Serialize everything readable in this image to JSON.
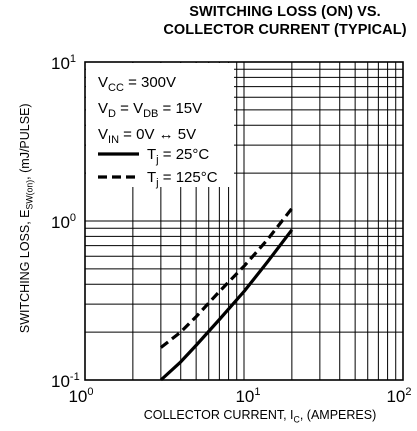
{
  "chart_data": {
    "type": "line",
    "title_line1": "SWITCHING LOSS (ON) VS.",
    "title_line2": "COLLECTOR CURRENT (TYPICAL)",
    "xlabel": {
      "main": "COLLECTOR CURRENT, I",
      "sub": "C",
      "tail": ", (AMPERES)"
    },
    "ylabel": {
      "main": "SWITCHING LOSS, E",
      "sub": "SW(on)",
      "tail": ",  (mJ/PULSE)"
    },
    "x_scale": "log",
    "y_scale": "log",
    "xlim": [
      1,
      100
    ],
    "ylim": [
      0.1,
      10
    ],
    "x_ticks": [
      {
        "base": "10",
        "exp": "0"
      },
      {
        "base": "10",
        "exp": "1"
      },
      {
        "base": "10",
        "exp": "2"
      }
    ],
    "y_ticks": [
      {
        "base": "10",
        "exp": "1"
      },
      {
        "base": "10",
        "exp": "0"
      },
      {
        "base": "10",
        "exp": "-1"
      }
    ],
    "grid": true,
    "conditions": {
      "vcc": {
        "pre": "V",
        "sub": "CC",
        "post": " = 300V"
      },
      "vd": {
        "pre": "V",
        "sub": "D",
        "mid": " = V",
        "sub2": "DB",
        "post": " = 15V"
      },
      "vin": {
        "pre": "V",
        "sub": "IN",
        "post": " = 0V ↔ 5V"
      }
    },
    "series": [
      {
        "name_pre": "T",
        "name_sub": "j",
        "name_post": " = 25°C",
        "style": "solid",
        "x": [
          3,
          4,
          5,
          7,
          10,
          14,
          20
        ],
        "y": [
          0.1,
          0.13,
          0.165,
          0.24,
          0.36,
          0.55,
          0.88
        ]
      },
      {
        "name_pre": "T",
        "name_sub": "j",
        "name_post": " = 125°C",
        "style": "dashed",
        "x": [
          3,
          4,
          5,
          7,
          10,
          14,
          20
        ],
        "y": [
          0.16,
          0.2,
          0.25,
          0.36,
          0.52,
          0.76,
          1.2
        ]
      }
    ],
    "line_color": "#000000",
    "grid_color": "#000000"
  }
}
